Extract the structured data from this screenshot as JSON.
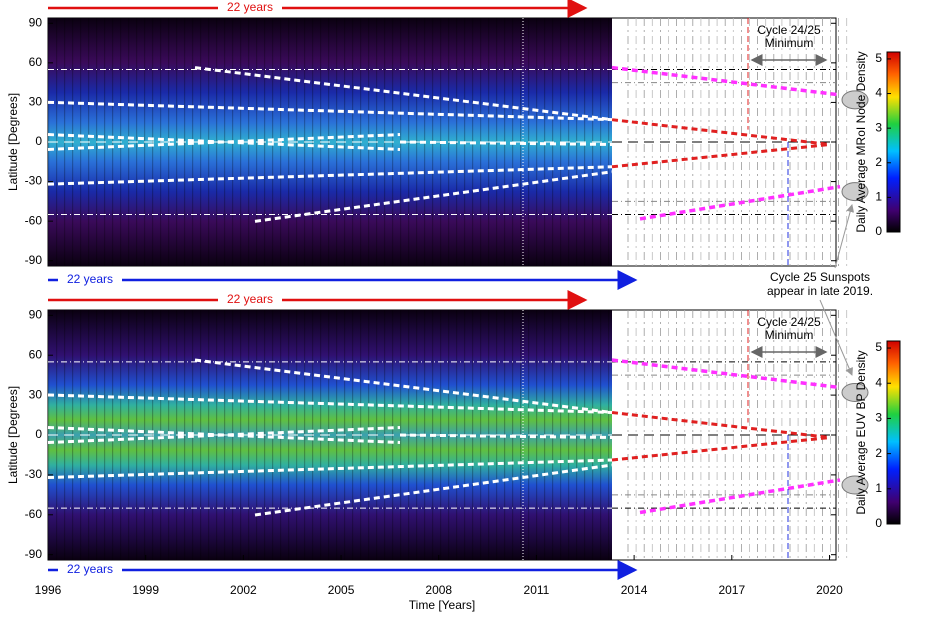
{
  "chart_data": [
    {
      "type": "heatmap",
      "ylabel": "Latitude [Degrees]",
      "xlim": [
        1996,
        2020.2
      ],
      "ylim": [
        -94,
        94
      ],
      "yticks": [
        90,
        60,
        30,
        0,
        -30,
        -60,
        -90
      ],
      "colorbar_label": "Daily Average MRoI Node Density",
      "clim": [
        0,
        5.2
      ],
      "cticks": [
        0,
        1,
        2,
        3,
        4,
        5
      ],
      "span_top": "22 years",
      "span_bottom": "22 years",
      "minimum_label": [
        "Cycle 24/25",
        "Minimum"
      ]
    },
    {
      "type": "heatmap",
      "ylabel": "Latitude [Degrees]",
      "xlabel": "Time [Years]",
      "xlim": [
        1996,
        2020.2
      ],
      "ylim": [
        -94,
        94
      ],
      "yticks": [
        90,
        60,
        30,
        0,
        -30,
        -60,
        -90
      ],
      "xticks": [
        1996,
        1999,
        2002,
        2005,
        2008,
        2011,
        2014,
        2017,
        2020
      ],
      "colorbar_label": "Daily Average EUV BP Density",
      "clim": [
        0,
        5.2
      ],
      "cticks": [
        0,
        1,
        2,
        3,
        4,
        5
      ],
      "span_top": "22 years",
      "span_bottom": "22 years",
      "minimum_label": [
        "Cycle 24/25",
        "Minimum"
      ]
    }
  ],
  "annotation": [
    "Cycle 25 Sunspots",
    "appear in late 2019."
  ]
}
